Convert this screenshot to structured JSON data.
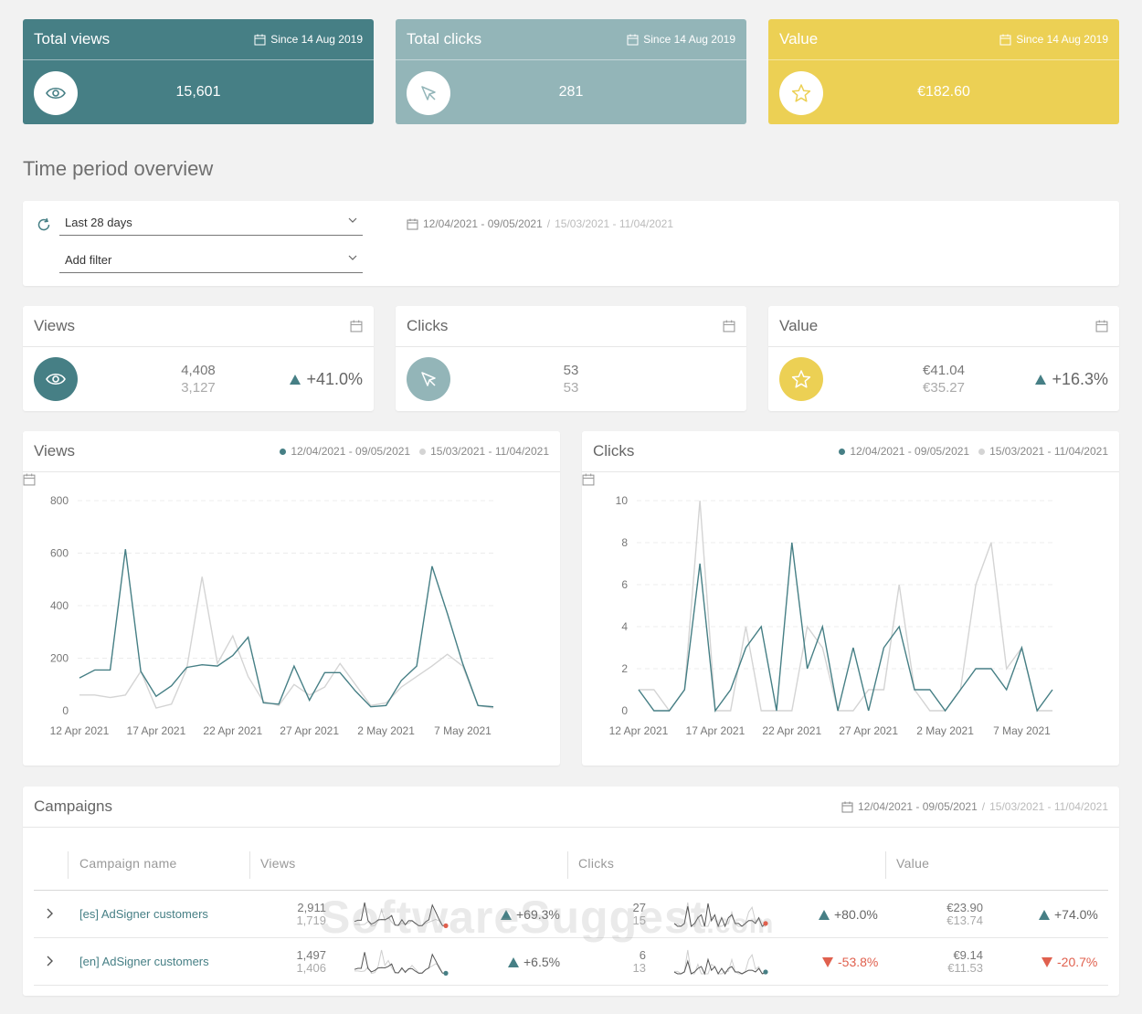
{
  "colors": {
    "teal": "#467f85",
    "light_teal": "#93b5b8",
    "yellow": "#ecd054",
    "grey_series": "#d4d4d4",
    "red": "#e0604e"
  },
  "top_cards": [
    {
      "title": "Total views",
      "since": "Since 14 Aug 2019",
      "value": "15,601",
      "icon": "eye-icon"
    },
    {
      "title": "Total clicks",
      "since": "Since 14 Aug 2019",
      "value": "281",
      "icon": "cursor-icon"
    },
    {
      "title": "Value",
      "since": "Since 14 Aug 2019",
      "value": "€182.60",
      "icon": "star-icon"
    }
  ],
  "section_title": "Time period overview",
  "filters": {
    "period": "Last 28 days",
    "add_filter": "Add filter",
    "range_current": "12/04/2021 - 09/05/2021",
    "separator": "/",
    "range_previous": "15/03/2021 - 11/04/2021"
  },
  "kpis": [
    {
      "title": "Views",
      "current": "4,408",
      "previous": "3,127",
      "change": "+41.0%",
      "icon": "eye-icon"
    },
    {
      "title": "Clicks",
      "current": "53",
      "previous": "53",
      "change": "",
      "icon": "cursor-icon"
    },
    {
      "title": "Value",
      "current": "€41.04",
      "previous": "€35.27",
      "change": "+16.3%",
      "icon": "star-icon"
    }
  ],
  "chart_data": [
    {
      "type": "line",
      "title": "Views",
      "x_ticks": [
        "12 Apr 2021",
        "17 Apr 2021",
        "22 Apr 2021",
        "27 Apr 2021",
        "2 May 2021",
        "7 May 2021"
      ],
      "ylim": [
        0,
        800
      ],
      "y_ticks": [
        0,
        200,
        400,
        600,
        800
      ],
      "grid": true,
      "legend_position": "top-right",
      "series": [
        {
          "name": "12/04/2021 - 09/05/2021",
          "color": "#467f85",
          "values": [
            125,
            155,
            155,
            615,
            150,
            55,
            95,
            165,
            175,
            170,
            210,
            280,
            30,
            25,
            170,
            40,
            145,
            145,
            75,
            15,
            20,
            115,
            170,
            550,
            370,
            180,
            20,
            15
          ]
        },
        {
          "name": "15/03/2021 - 11/04/2021",
          "color": "#d4d4d4",
          "values": [
            60,
            60,
            50,
            60,
            150,
            10,
            25,
            160,
            510,
            180,
            285,
            130,
            35,
            20,
            100,
            60,
            90,
            180,
            100,
            20,
            30,
            90,
            130,
            170,
            215,
            170,
            20,
            10
          ]
        }
      ]
    },
    {
      "type": "line",
      "title": "Clicks",
      "x_ticks": [
        "12 Apr 2021",
        "17 Apr 2021",
        "22 Apr 2021",
        "27 Apr 2021",
        "2 May 2021",
        "7 May 2021"
      ],
      "ylim": [
        0,
        10
      ],
      "y_ticks": [
        0,
        2,
        4,
        6,
        8,
        10
      ],
      "grid": true,
      "legend_position": "top-right",
      "series": [
        {
          "name": "12/04/2021 - 09/05/2021",
          "color": "#467f85",
          "values": [
            1,
            0,
            0,
            1,
            7,
            0,
            1,
            3,
            4,
            0,
            8,
            2,
            4,
            0,
            3,
            0,
            3,
            4,
            1,
            1,
            0,
            1,
            2,
            2,
            1,
            3,
            0,
            1
          ]
        },
        {
          "name": "15/03/2021 - 11/04/2021",
          "color": "#d4d4d4",
          "values": [
            1,
            1,
            0,
            1,
            10,
            0,
            0,
            4,
            0,
            0,
            0,
            4,
            3,
            0,
            0,
            1,
            1,
            6,
            1,
            0,
            0,
            1,
            6,
            8,
            2,
            3,
            0,
            0
          ]
        }
      ]
    }
  ],
  "campaigns": {
    "title": "Campaigns",
    "range_current": "12/04/2021 - 09/05/2021",
    "separator": "/",
    "range_previous": "15/03/2021 - 11/04/2021",
    "headers": {
      "name": "Campaign name",
      "views": "Views",
      "clicks": "Clicks",
      "value": "Value"
    },
    "rows": [
      {
        "name": "[es] AdSigner customers",
        "views_cur": "2,911",
        "views_prev": "1,719",
        "views_change": "+69.3%",
        "views_dir": "up",
        "clicks_cur": "27",
        "clicks_prev": "15",
        "clicks_change": "+80.0%",
        "clicks_dir": "up",
        "value_cur": "€23.90",
        "value_prev": "€13.74",
        "value_change": "+74.0%",
        "value_dir": "up"
      },
      {
        "name": "[en] AdSigner customers",
        "views_cur": "1,497",
        "views_prev": "1,406",
        "views_change": "+6.5%",
        "views_dir": "up",
        "clicks_cur": "6",
        "clicks_prev": "13",
        "clicks_change": "-53.8%",
        "clicks_dir": "down",
        "value_cur": "€9.14",
        "value_prev": "€11.53",
        "value_change": "-20.7%",
        "value_dir": "down"
      }
    ]
  },
  "watermark": {
    "main": "SoftwareSuggest",
    "suffix": ".com"
  }
}
